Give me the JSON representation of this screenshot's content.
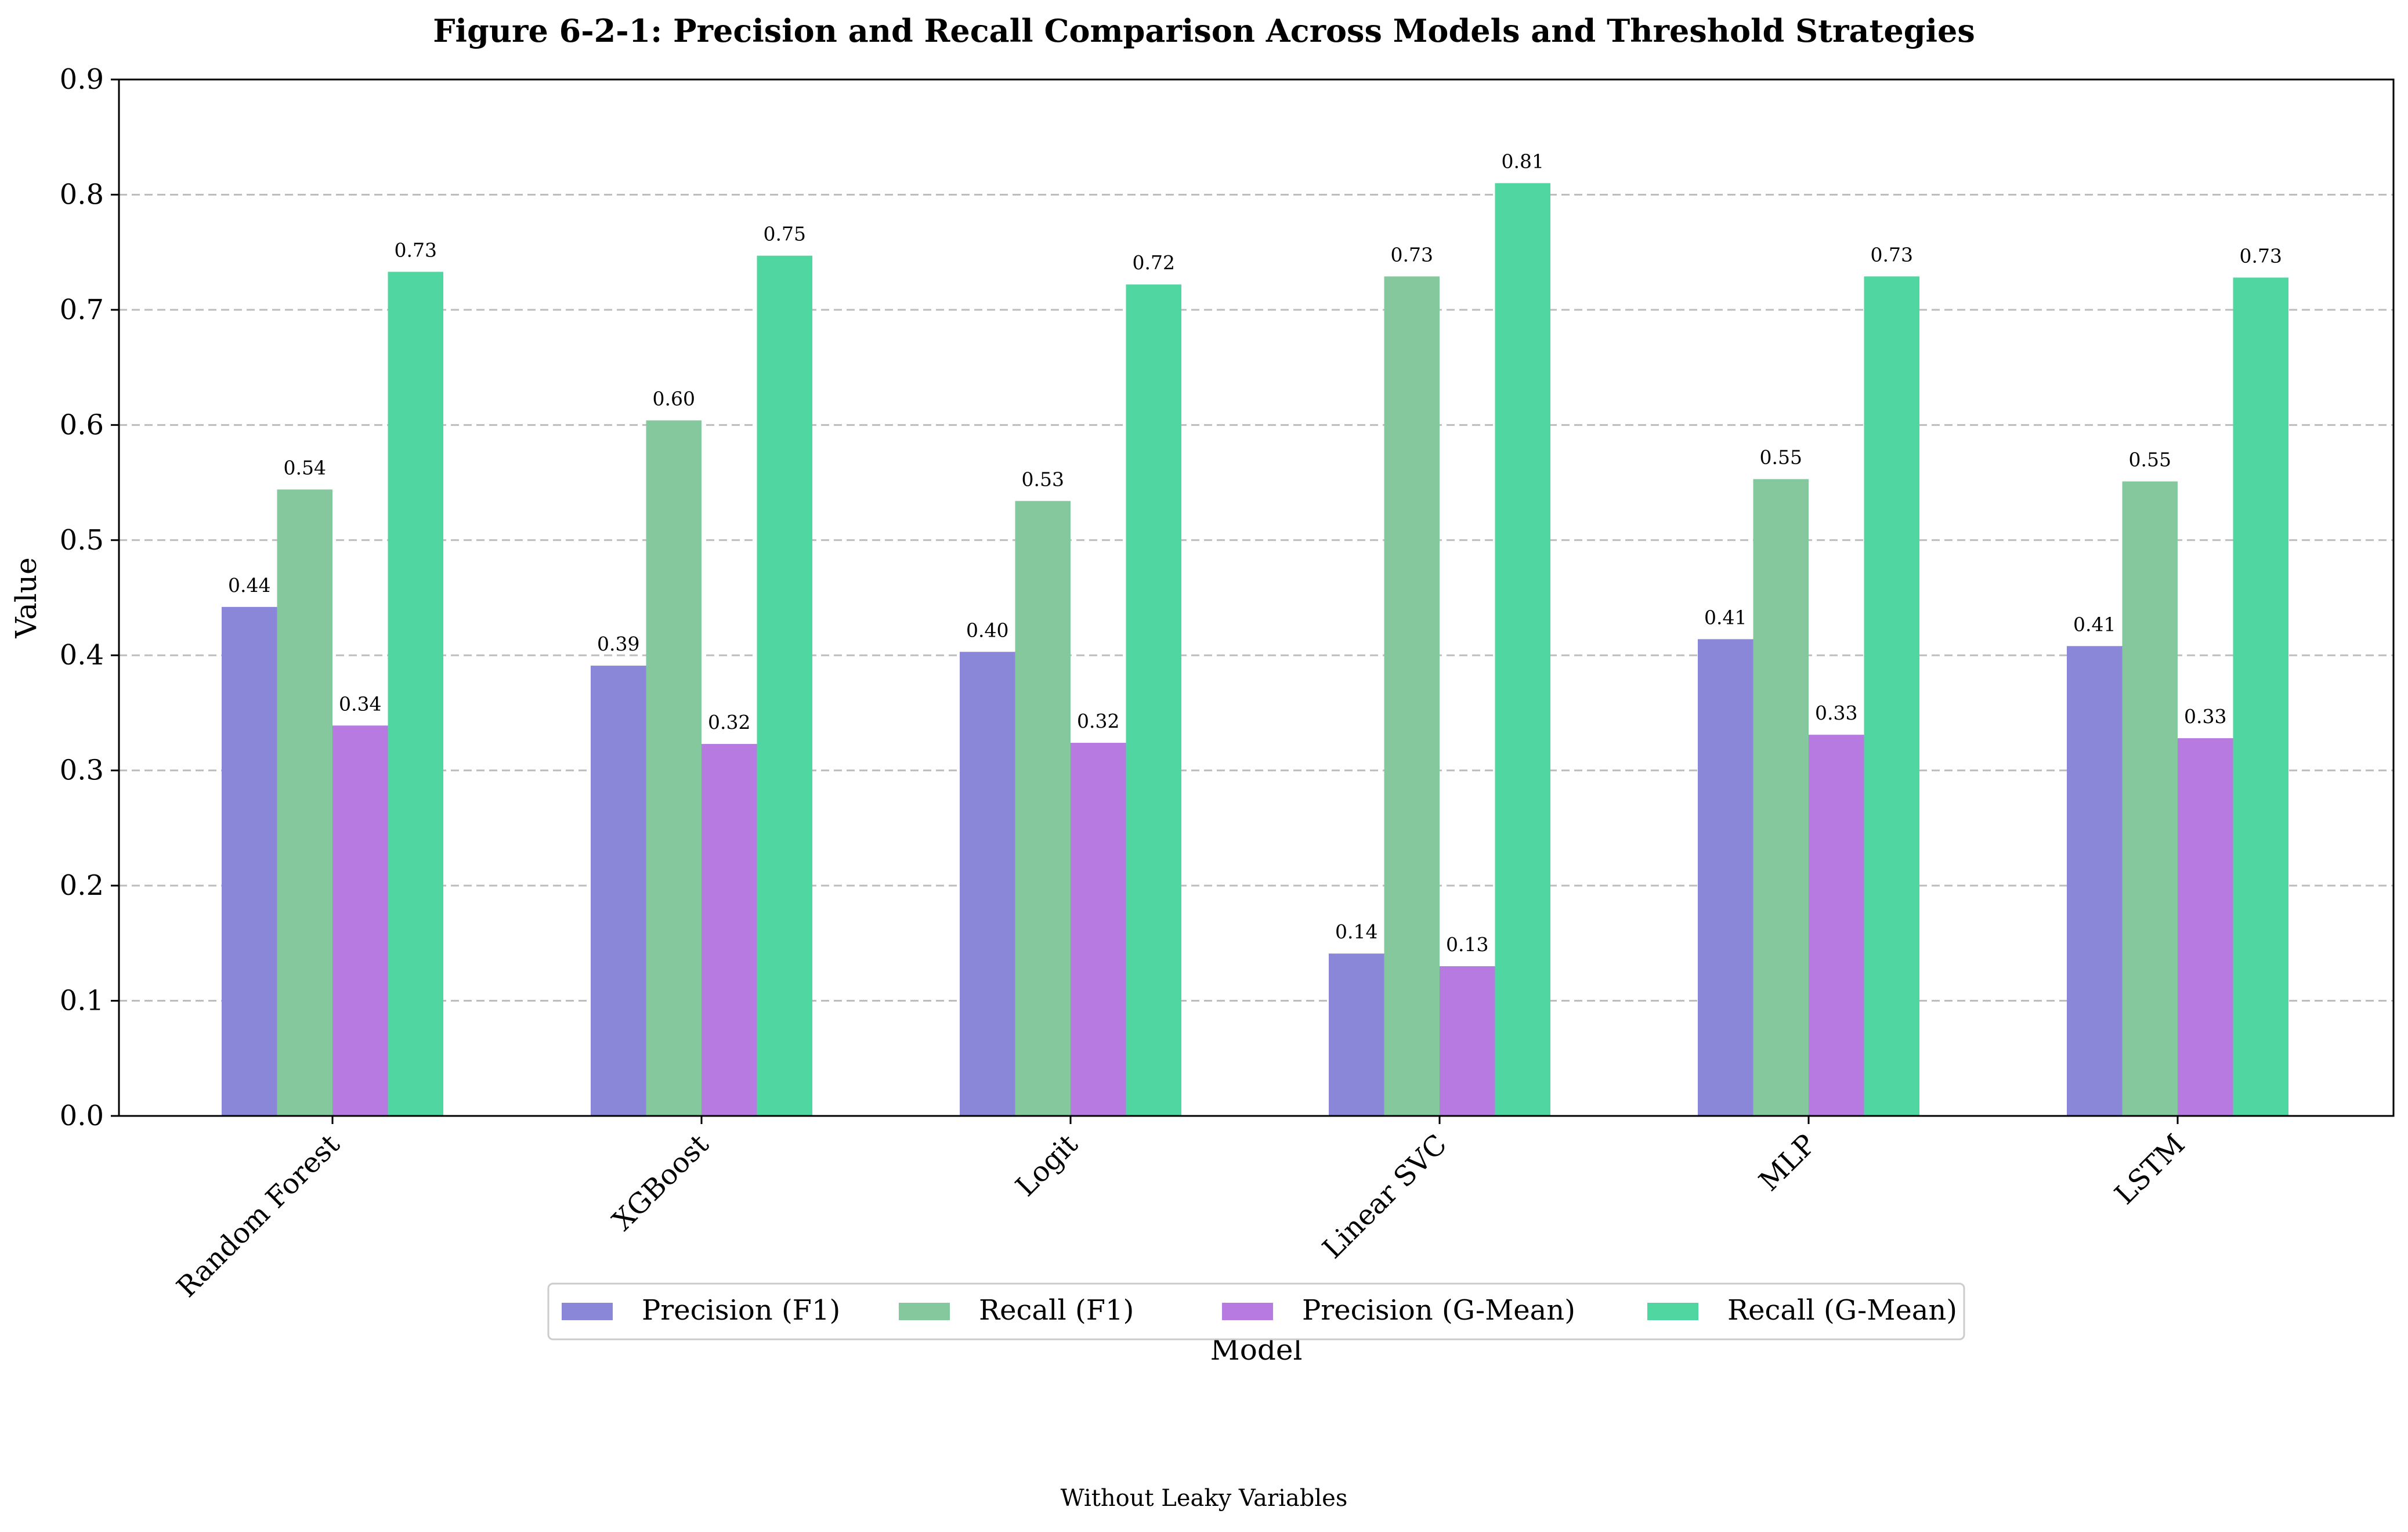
{
  "chart_data": {
    "type": "bar",
    "title": "Figure 6-2-1: Precision and Recall Comparison Across Models and Threshold Strategies",
    "xlabel": "Model",
    "ylabel": "Value",
    "footnote": "Without Leaky Variables",
    "categories": [
      "Random Forest",
      "XGBoost",
      "Logit",
      "Linear SVC",
      "MLP",
      "LSTM"
    ],
    "series": [
      {
        "name": "Precision (F1)",
        "color": "#8a87d8",
        "values": [
          0.442,
          0.391,
          0.403,
          0.141,
          0.414,
          0.408
        ],
        "labels": [
          "0.44",
          "0.39",
          "0.40",
          "0.14",
          "0.41",
          "0.41"
        ]
      },
      {
        "name": "Recall (F1)",
        "color": "#86c89d",
        "values": [
          0.544,
          0.604,
          0.534,
          0.729,
          0.553,
          0.551
        ],
        "labels": [
          "0.54",
          "0.60",
          "0.53",
          "0.73",
          "0.55",
          "0.55"
        ]
      },
      {
        "name": "Precision (G-Mean)",
        "color": "#b77ae0",
        "values": [
          0.339,
          0.323,
          0.324,
          0.13,
          0.331,
          0.328
        ],
        "labels": [
          "0.34",
          "0.32",
          "0.32",
          "0.13",
          "0.33",
          "0.33"
        ]
      },
      {
        "name": "Recall (G-Mean)",
        "color": "#50d6a0",
        "values": [
          0.733,
          0.747,
          0.722,
          0.81,
          0.729,
          0.728
        ],
        "labels": [
          "0.73",
          "0.75",
          "0.72",
          "0.81",
          "0.73",
          "0.73"
        ]
      }
    ],
    "ylim": [
      0,
      0.9
    ],
    "yticks": [
      "0.0",
      "0.1",
      "0.2",
      "0.3",
      "0.4",
      "0.5",
      "0.6",
      "0.7",
      "0.8",
      "0.9"
    ],
    "grid": "horizontal dashed",
    "legend_placement": "bottom-center"
  }
}
